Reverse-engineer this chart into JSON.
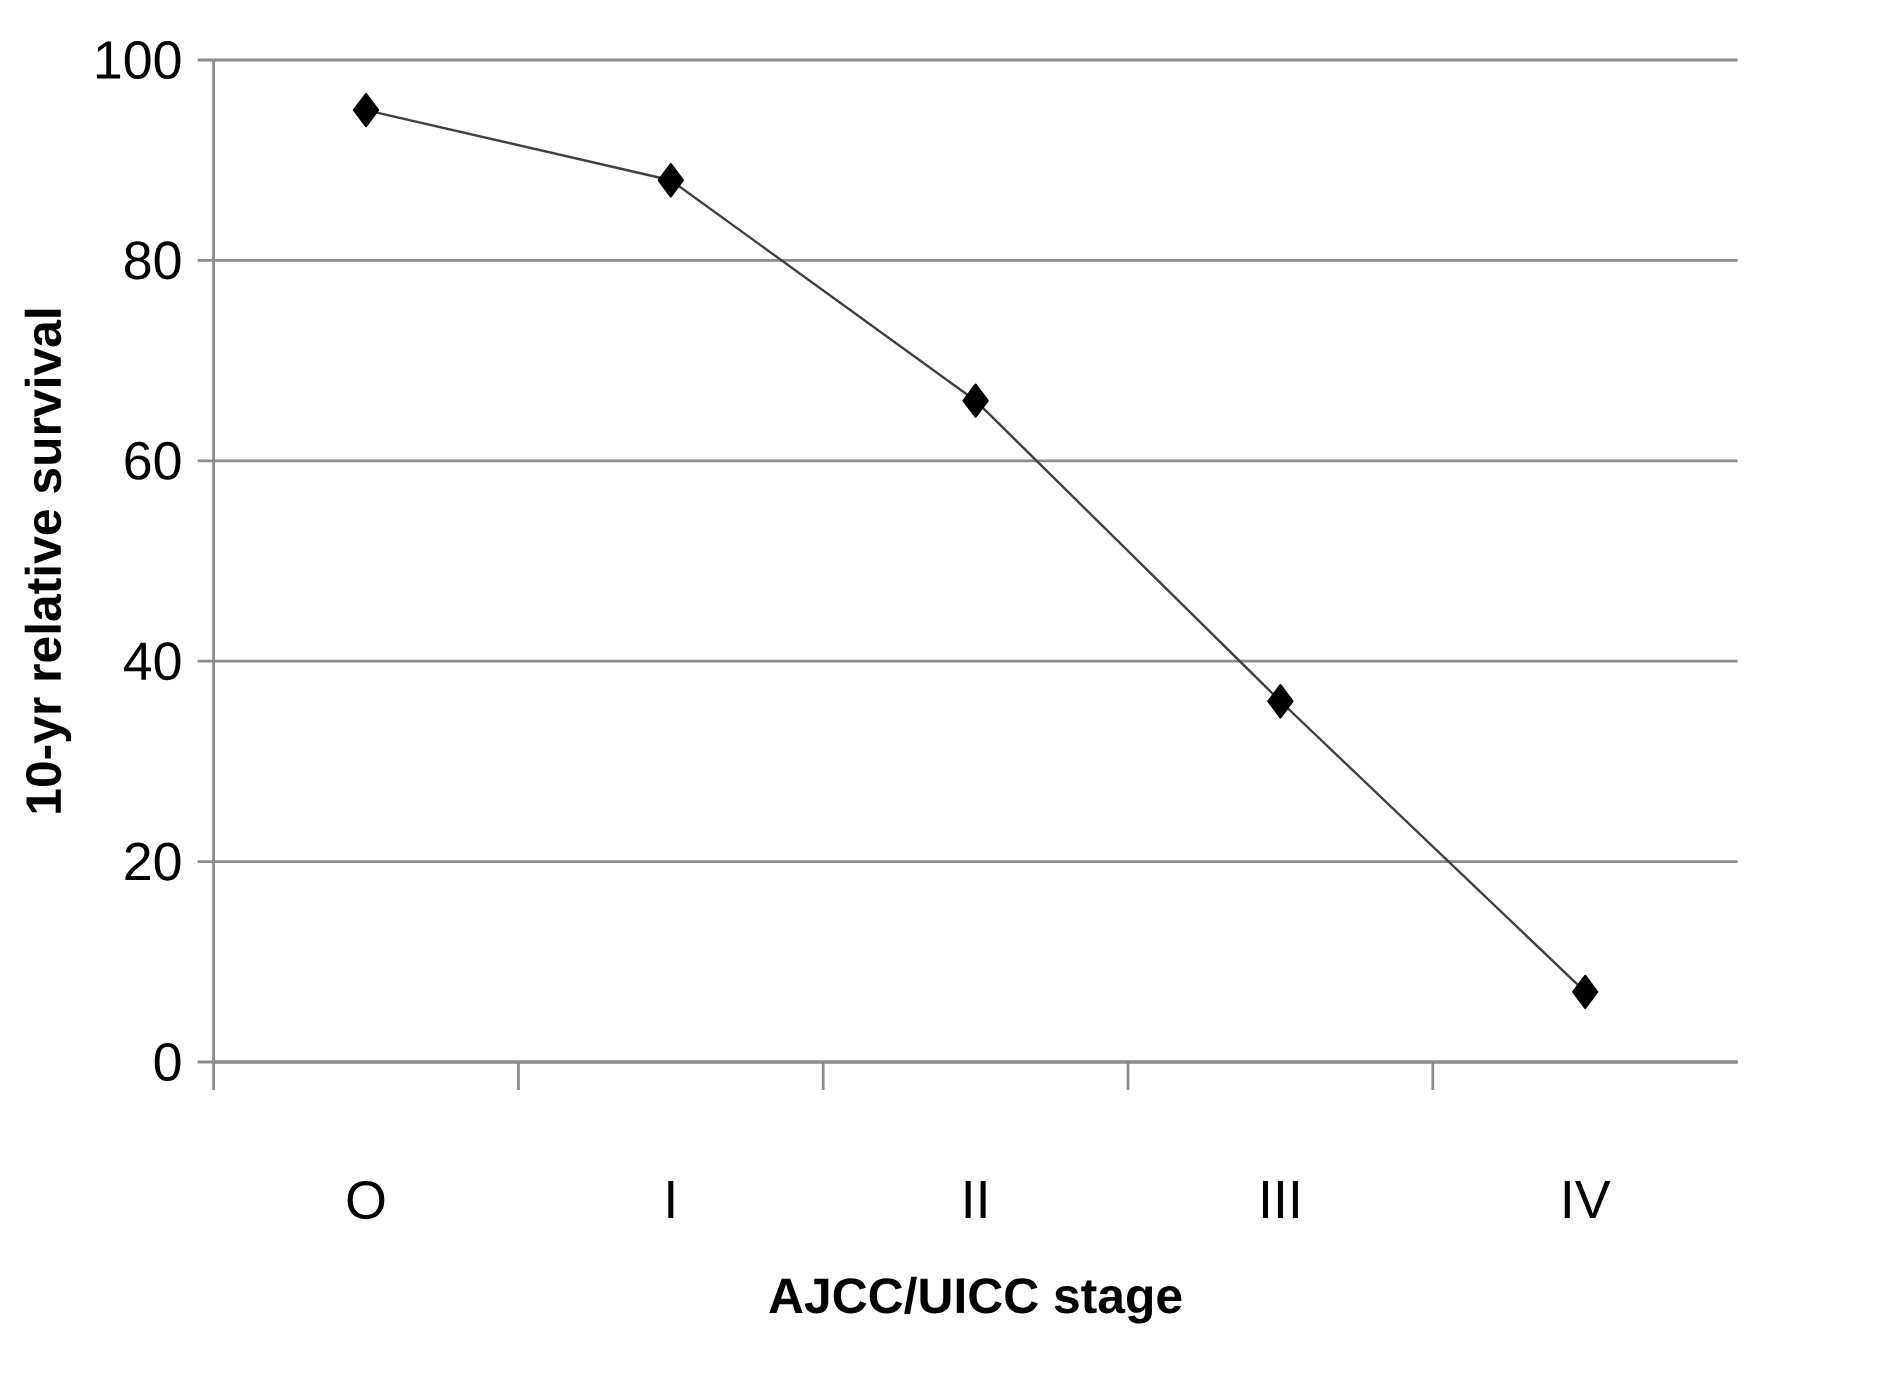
{
  "chart_data": {
    "type": "line",
    "xlabel": "AJCC/UICC stage",
    "ylabel": "10-yr relative survival",
    "categories": [
      "O",
      "I",
      "II",
      "III",
      "IV"
    ],
    "series": [
      {
        "color": "#000000",
        "values": [
          95,
          88,
          66,
          36,
          7
        ]
      }
    ],
    "ylim": [
      0,
      100
    ],
    "yticks": [
      0,
      20,
      40,
      60,
      80,
      100
    ],
    "grid": "y",
    "marker": "diamond",
    "line_style": "solid"
  }
}
